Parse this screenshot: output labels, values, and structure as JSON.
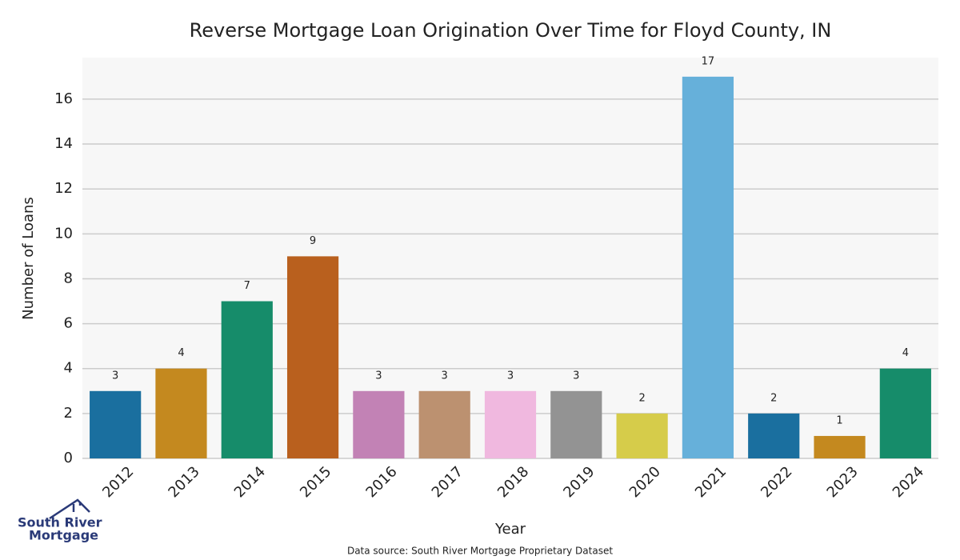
{
  "chart_data": {
    "type": "bar",
    "title": "Reverse Mortgage Loan Origination Over Time for Floyd County, IN",
    "x_label": "Year",
    "y_label": "Number of Loans",
    "categories": [
      "2012",
      "2013",
      "2014",
      "2015",
      "2016",
      "2017",
      "2018",
      "2019",
      "2020",
      "2021",
      "2022",
      "2023",
      "2024"
    ],
    "values": [
      3,
      4,
      7,
      9,
      3,
      3,
      3,
      3,
      2,
      17,
      2,
      1,
      4
    ],
    "colors": [
      "#1a6f9f",
      "#c4891f",
      "#168c6a",
      "#b9601e",
      "#c282b5",
      "#bc9170",
      "#f0b8df",
      "#939393",
      "#d6cc4a",
      "#66b0da",
      "#1a6f9f",
      "#c4891f",
      "#168c6a"
    ],
    "ylim": [
      0,
      17.85
    ],
    "yticks": [
      0,
      2,
      4,
      6,
      8,
      10,
      12,
      14,
      16
    ],
    "grid": true,
    "source": "Data source: South River Mortgage Proprietary Dataset"
  },
  "logo": {
    "line1": "South River",
    "line2": "Mortgage"
  }
}
